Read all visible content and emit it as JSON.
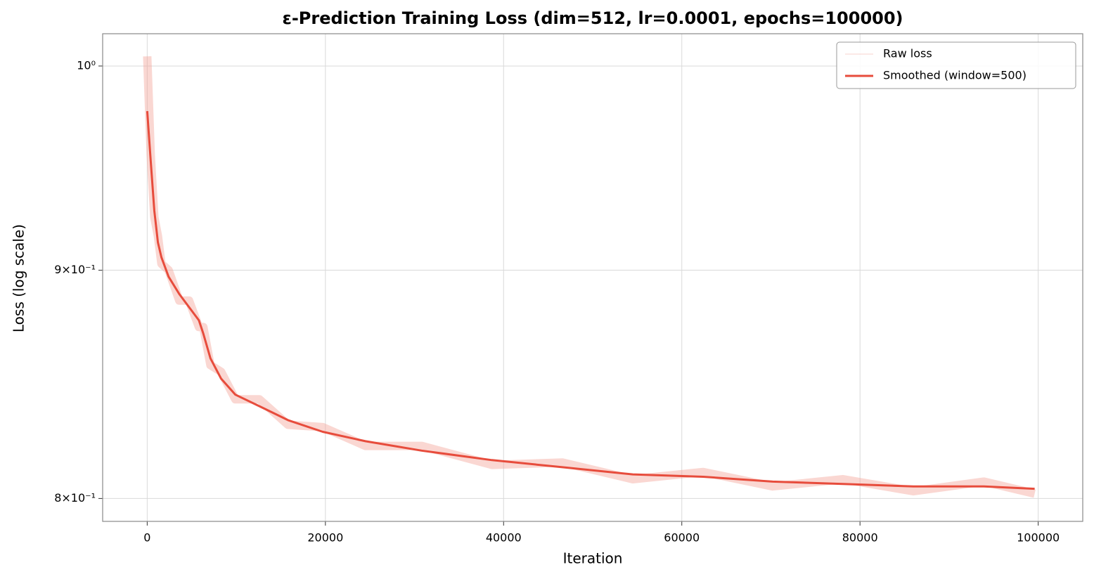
{
  "chart_data": {
    "type": "line",
    "title": "ε-Prediction Training Loss (dim=512, lr=0.0001, epochs=100000)",
    "x_label": "Iteration",
    "y_label": "Loss (log scale)",
    "x": [
      0,
      400,
      800,
      1200,
      1600,
      2400,
      3600,
      4700,
      5800,
      6300,
      7100,
      8300,
      9900,
      12600,
      15800,
      19700,
      24500,
      30800,
      38700,
      46600,
      54500,
      62400,
      70200,
      78100,
      86000,
      93900,
      99600
    ],
    "series": [
      {
        "name": "Raw loss",
        "color": "#f4a79c",
        "values": [
          1.005,
          0.955,
          0.925,
          0.916,
          0.903,
          0.9,
          0.886,
          0.886,
          0.874,
          0.874,
          0.857,
          0.854,
          0.842,
          0.842,
          0.831,
          0.83,
          0.822,
          0.822,
          0.814,
          0.815,
          0.808,
          0.811,
          0.805,
          0.808,
          0.803,
          0.807,
          0.802
        ]
      },
      {
        "name": "Smoothed (window=500)",
        "color": "#e74c3c",
        "values": [
          0.977,
          0.952,
          0.928,
          0.913,
          0.906,
          0.897,
          0.889,
          0.883,
          0.877,
          0.871,
          0.86,
          0.851,
          0.844,
          0.839,
          0.833,
          0.828,
          0.824,
          0.82,
          0.816,
          0.813,
          0.81,
          0.809,
          0.807,
          0.806,
          0.805,
          0.805,
          0.804
        ]
      }
    ],
    "xlim": [
      -5000,
      105000
    ],
    "ylim": [
      0.7906,
      1.0168
    ],
    "log_y": true,
    "xticks": [
      0,
      20000,
      40000,
      60000,
      80000,
      100000
    ],
    "yticks": [
      {
        "value": 0.8,
        "label": "8×10⁻¹"
      },
      {
        "value": 0.9,
        "label": "9×10⁻¹"
      },
      {
        "value": 1,
        "label": "10⁰"
      }
    ],
    "grid": true,
    "legend": "upper right"
  }
}
